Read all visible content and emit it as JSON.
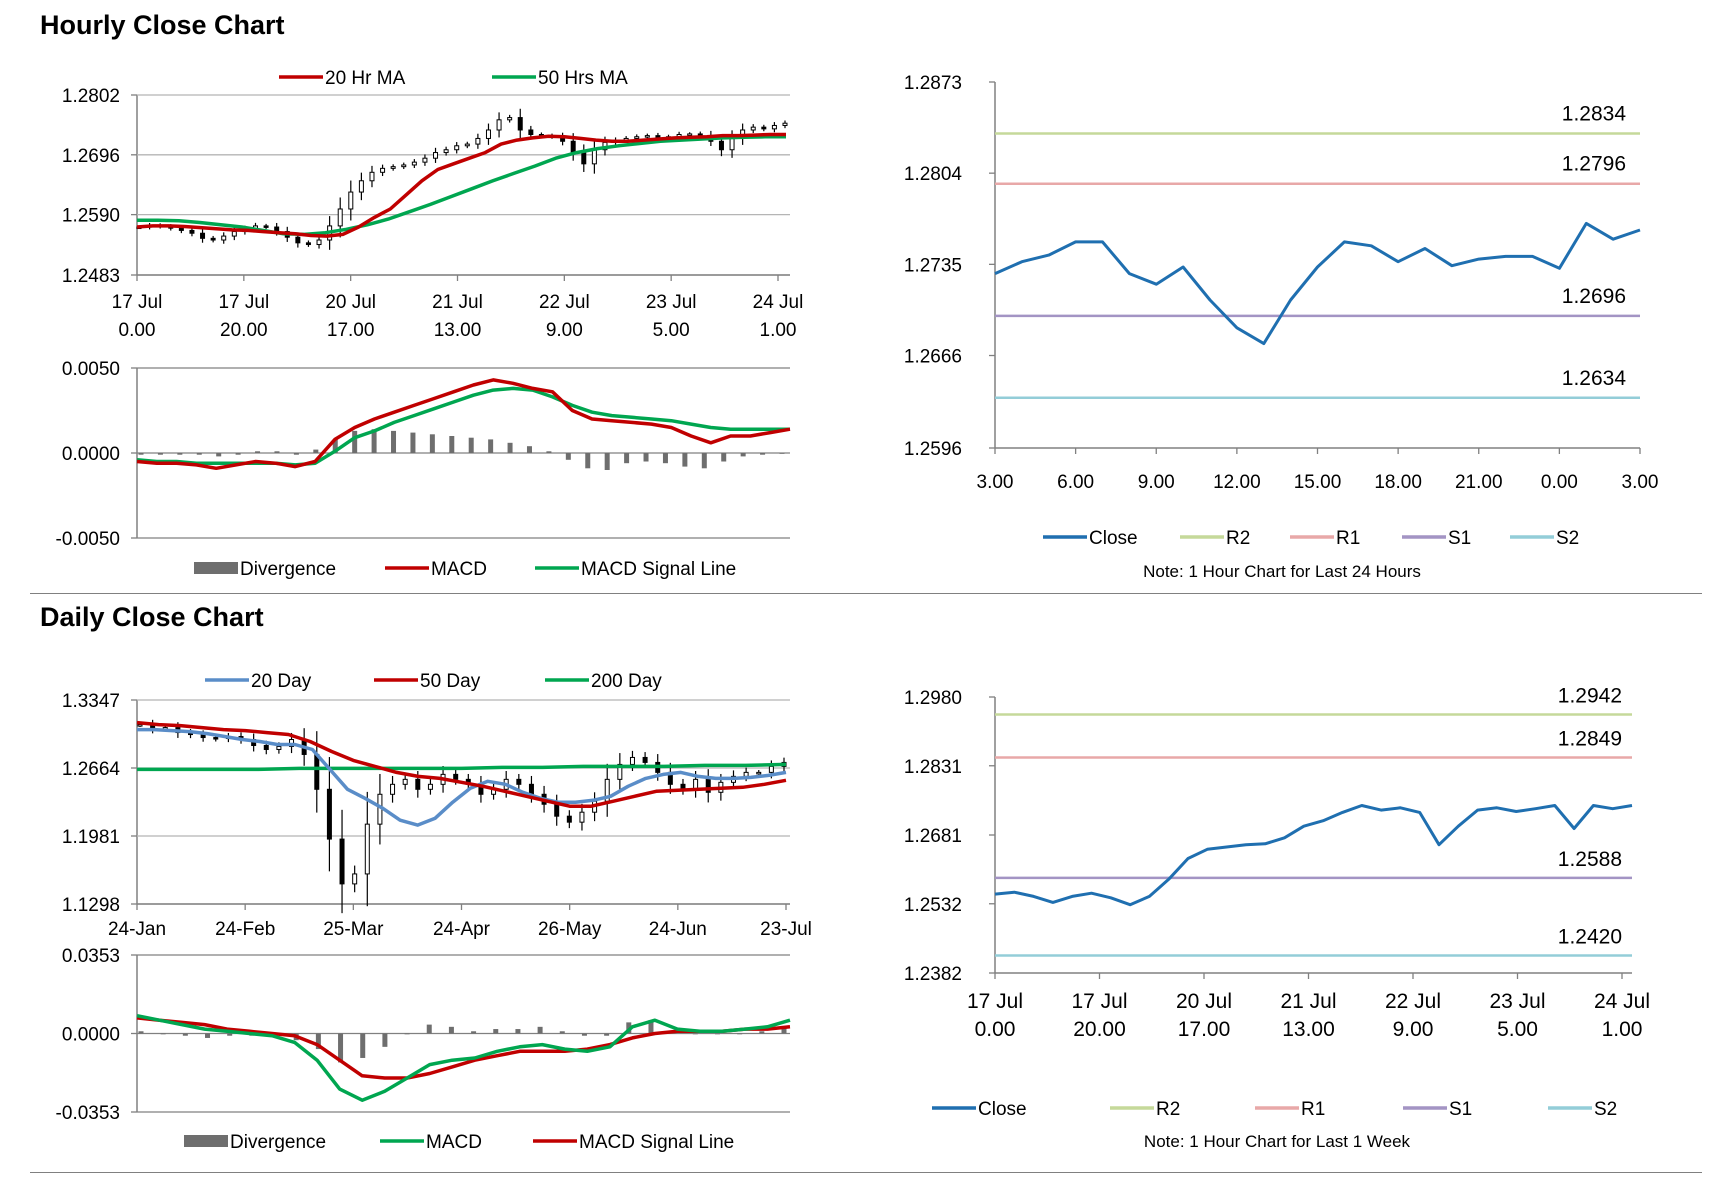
{
  "sections": [
    {
      "title": "Hourly Close Chart"
    },
    {
      "title": "Daily Close Chart"
    }
  ],
  "colors": {
    "ma20": "#c00000",
    "ma50": "#00a650",
    "close": "#1f6fb0",
    "r2": "#c5d99a",
    "r1": "#e8a8a8",
    "s1": "#a394c4",
    "s2": "#93cdd8",
    "divergence": "#6e6e6e",
    "ma20_day": "#5a8dc8",
    "grid": "#b5b5b5"
  },
  "chart_data": [
    {
      "id": "hourly-price",
      "type": "candlestick",
      "legend": [
        "20 Hr MA",
        "50 Hrs MA"
      ],
      "ylim": [
        1.2483,
        1.2802
      ],
      "yticks": [
        "1.2802",
        "1.2696",
        "1.2590",
        "1.2483"
      ],
      "xticks": [
        [
          "17 Jul",
          "0.00"
        ],
        [
          "17 Jul",
          "20.00"
        ],
        [
          "20 Jul",
          "17.00"
        ],
        [
          "21 Jul",
          "13.00"
        ],
        [
          "22 Jul",
          "9.00"
        ],
        [
          "23 Jul",
          "5.00"
        ],
        [
          "24 Jul",
          "1.00"
        ]
      ],
      "close": [
        1.2568,
        1.2571,
        1.2569,
        1.2566,
        1.2562,
        1.2557,
        1.2548,
        1.2545,
        1.2552,
        1.256,
        1.2565,
        1.257,
        1.2568,
        1.256,
        1.255,
        1.254,
        1.2537,
        1.2545,
        1.257,
        1.26,
        1.263,
        1.265,
        1.2665,
        1.2672,
        1.2675,
        1.2678,
        1.2683,
        1.269,
        1.27,
        1.2705,
        1.2712,
        1.2715,
        1.2725,
        1.274,
        1.2758,
        1.2762,
        1.274,
        1.2732,
        1.273,
        1.2728,
        1.272,
        1.27,
        1.268,
        1.2705,
        1.2718,
        1.2722,
        1.2725,
        1.2728,
        1.273,
        1.2726,
        1.2728,
        1.2732,
        1.2733,
        1.273,
        1.272,
        1.2705,
        1.2725,
        1.274,
        1.2745,
        1.2742,
        1.2748,
        1.2752
      ],
      "ma20": [
        1.2568,
        1.257,
        1.257,
        1.2569,
        1.2567,
        1.2565,
        1.2563,
        1.2562,
        1.256,
        1.2558,
        1.2556,
        1.2553,
        1.2552,
        1.2555,
        1.2568,
        1.2585,
        1.26,
        1.2625,
        1.265,
        1.267,
        1.268,
        1.269,
        1.27,
        1.2715,
        1.2722,
        1.2726,
        1.2729,
        1.2728,
        1.2725,
        1.2722,
        1.272,
        1.272,
        1.2722,
        1.2724,
        1.2726,
        1.2727,
        1.2728,
        1.273,
        1.273,
        1.2731,
        1.2732,
        1.2732
      ],
      "ma50": [
        1.258,
        1.258,
        1.2579,
        1.2576,
        1.2572,
        1.2568,
        1.2562,
        1.2556,
        1.2555,
        1.2558,
        1.2564,
        1.2572,
        1.2582,
        1.2595,
        1.2608,
        1.2622,
        1.2636,
        1.265,
        1.2663,
        1.2676,
        1.269,
        1.27,
        1.2707,
        1.2712,
        1.2716,
        1.272,
        1.2722,
        1.2724,
        1.2726,
        1.2727,
        1.2728,
        1.2728
      ]
    },
    {
      "id": "hourly-macd",
      "type": "line+bar",
      "legend": [
        "Divergence",
        "MACD",
        "MACD Signal Line"
      ],
      "ylim": [
        -0.005,
        0.005
      ],
      "yticks": [
        "0.0050",
        "0.0000",
        "-0.0050"
      ],
      "macd": [
        -0.0005,
        -0.0006,
        -0.0006,
        -0.0007,
        -0.0009,
        -0.0007,
        -0.0005,
        -0.0006,
        -0.0008,
        -0.0005,
        0.0008,
        0.0015,
        0.002,
        0.0024,
        0.0028,
        0.0032,
        0.0036,
        0.004,
        0.0043,
        0.0041,
        0.0038,
        0.0036,
        0.0025,
        0.002,
        0.0019,
        0.0018,
        0.0017,
        0.0015,
        0.001,
        0.0006,
        0.001,
        0.001,
        0.0012,
        0.0014
      ],
      "signal": [
        -0.0004,
        -0.0005,
        -0.0005,
        -0.0006,
        -0.0006,
        -0.0006,
        -0.0006,
        -0.0006,
        -0.0007,
        -0.0006,
        0.0001,
        0.0009,
        0.0013,
        0.0018,
        0.0022,
        0.0026,
        0.003,
        0.0034,
        0.0037,
        0.0038,
        0.0037,
        0.0033,
        0.0028,
        0.0024,
        0.0022,
        0.0021,
        0.002,
        0.0019,
        0.0017,
        0.0015,
        0.0014,
        0.0014,
        0.0014,
        0.0014
      ],
      "divergence": [
        -0.0001,
        -0.0001,
        -0.0001,
        -0.0001,
        -0.0002,
        -0.0001,
        0.0001,
        0.0001,
        -0.0001,
        0.0002,
        0.0008,
        0.0013,
        0.0014,
        0.0013,
        0.0012,
        0.0011,
        0.001,
        0.0009,
        0.0008,
        0.0006,
        0.0004,
        0.0001,
        -0.0004,
        -0.0009,
        -0.001,
        -0.0006,
        -0.0005,
        -0.0006,
        -0.0008,
        -0.0009,
        -0.0005,
        -0.0002,
        -0.0001,
        0.0
      ]
    },
    {
      "id": "hourly-close-levels",
      "type": "line",
      "legend": [
        "Close",
        "R2",
        "R1",
        "S1",
        "S2"
      ],
      "note": "Note: 1 Hour Chart for Last 24 Hours",
      "ylim": [
        1.2596,
        1.2873
      ],
      "yticks": [
        "1.2873",
        "1.2804",
        "1.2735",
        "1.2666",
        "1.2596"
      ],
      "xticks": [
        "3.00",
        "6.00",
        "9.00",
        "12.00",
        "15.00",
        "18.00",
        "21.00",
        "0.00",
        "3.00"
      ],
      "close": [
        1.2728,
        1.2737,
        1.2742,
        1.2752,
        1.2752,
        1.2728,
        1.272,
        1.2733,
        1.2708,
        1.2687,
        1.2675,
        1.2708,
        1.2733,
        1.2752,
        1.2749,
        1.2737,
        1.2747,
        1.2734,
        1.2739,
        1.2741,
        1.2741,
        1.2732,
        1.2766,
        1.2754,
        1.2761
      ],
      "levels": {
        "R2": "1.2834",
        "R1": "1.2796",
        "S1": "1.2696",
        "S2": "1.2634"
      }
    },
    {
      "id": "daily-price",
      "type": "candlestick",
      "legend": [
        "20 Day",
        "50 Day",
        "200 Day"
      ],
      "ylim": [
        1.1298,
        1.3347
      ],
      "yticks": [
        "1.3347",
        "1.2664",
        "1.1981",
        "1.1298"
      ],
      "xticks": [
        "24-Jan",
        "24-Feb",
        "25-Mar",
        "24-Apr",
        "26-May",
        "24-Jun",
        "23-Jul"
      ],
      "close": [
        1.31,
        1.306,
        1.307,
        1.302,
        1.3,
        1.297,
        1.296,
        1.298,
        1.295,
        1.289,
        1.285,
        1.288,
        1.295,
        1.28,
        1.245,
        1.195,
        1.15,
        1.16,
        1.21,
        1.24,
        1.25,
        1.255,
        1.245,
        1.25,
        1.26,
        1.255,
        1.25,
        1.24,
        1.245,
        1.255,
        1.25,
        1.24,
        1.23,
        1.218,
        1.212,
        1.222,
        1.233,
        1.255,
        1.27,
        1.277,
        1.272,
        1.262,
        1.25,
        1.245,
        1.255,
        1.242,
        1.252,
        1.258,
        1.262,
        1.262,
        1.268,
        1.272
      ],
      "ma20": [
        1.305,
        1.305,
        1.304,
        1.303,
        1.301,
        1.298,
        1.295,
        1.293,
        1.29,
        1.29,
        1.285,
        1.265,
        1.245,
        1.236,
        1.226,
        1.214,
        1.209,
        1.216,
        1.232,
        1.246,
        1.253,
        1.25,
        1.242,
        1.236,
        1.232,
        1.232,
        1.234,
        1.238,
        1.248,
        1.256,
        1.26,
        1.262,
        1.258,
        1.256,
        1.256,
        1.257,
        1.259,
        1.262
      ],
      "ma50": [
        1.312,
        1.31,
        1.309,
        1.307,
        1.305,
        1.304,
        1.302,
        1.3,
        1.293,
        1.283,
        1.274,
        1.268,
        1.262,
        1.258,
        1.256,
        1.252,
        1.248,
        1.243,
        1.238,
        1.233,
        1.228,
        1.228,
        1.233,
        1.238,
        1.243,
        1.244,
        1.245,
        1.246,
        1.247,
        1.25,
        1.254
      ],
      "ma200": [
        1.265,
        1.265,
        1.265,
        1.265,
        1.266,
        1.266,
        1.266,
        1.266,
        1.266,
        1.267,
        1.267,
        1.268,
        1.268,
        1.268,
        1.269,
        1.269,
        1.27
      ]
    },
    {
      "id": "daily-macd",
      "type": "line+bar",
      "legend": [
        "Divergence",
        "MACD",
        "MACD Signal Line"
      ],
      "ylim": [
        -0.0353,
        0.0353
      ],
      "yticks": [
        "0.0353",
        "0.0000",
        "-0.0353"
      ],
      "macd": [
        0.008,
        0.006,
        0.004,
        0.002,
        0.001,
        0.0,
        -0.001,
        -0.004,
        -0.012,
        -0.025,
        -0.03,
        -0.026,
        -0.02,
        -0.014,
        -0.012,
        -0.011,
        -0.008,
        -0.006,
        -0.005,
        -0.007,
        -0.008,
        -0.006,
        0.003,
        0.006,
        0.002,
        0.001,
        0.001,
        0.002,
        0.003,
        0.006
      ],
      "signal": [
        0.007,
        0.006,
        0.005,
        0.004,
        0.002,
        0.001,
        0.0,
        -0.001,
        -0.005,
        -0.012,
        -0.019,
        -0.02,
        -0.02,
        -0.018,
        -0.015,
        -0.012,
        -0.01,
        -0.008,
        -0.008,
        -0.008,
        -0.007,
        -0.005,
        -0.002,
        0.0,
        0.001,
        0.001,
        0.001,
        0.002,
        0.002,
        0.003
      ],
      "divergence": [
        0.001,
        0.0,
        -0.001,
        -0.002,
        -0.001,
        -0.001,
        -0.001,
        -0.003,
        -0.007,
        -0.013,
        -0.011,
        -0.006,
        0.0,
        0.004,
        0.003,
        0.001,
        0.002,
        0.002,
        0.003,
        0.001,
        -0.001,
        -0.001,
        0.005,
        0.006,
        0.001,
        0.0,
        0.0,
        0.0,
        0.001,
        0.003
      ]
    },
    {
      "id": "daily-close-levels",
      "type": "line",
      "legend": [
        "Close",
        "R2",
        "R1",
        "S1",
        "S2"
      ],
      "note": "Note: 1 Hour Chart for Last 1 Week",
      "ylim": [
        1.2382,
        1.298
      ],
      "yticks": [
        "1.2980",
        "1.2831",
        "1.2681",
        "1.2532",
        "1.2382"
      ],
      "xticks": [
        [
          "17 Jul",
          "0.00"
        ],
        [
          "17 Jul",
          "20.00"
        ],
        [
          "20 Jul",
          "17.00"
        ],
        [
          "21 Jul",
          "13.00"
        ],
        [
          "22 Jul",
          "9.00"
        ],
        [
          "23 Jul",
          "5.00"
        ],
        [
          "24 Jul",
          "1.00"
        ]
      ],
      "close": [
        1.2553,
        1.2557,
        1.2548,
        1.2535,
        1.2548,
        1.2555,
        1.2545,
        1.253,
        1.2548,
        1.2585,
        1.263,
        1.265,
        1.2655,
        1.266,
        1.2662,
        1.2675,
        1.27,
        1.2712,
        1.273,
        1.2745,
        1.2735,
        1.274,
        1.273,
        1.266,
        1.27,
        1.2735,
        1.274,
        1.2732,
        1.2738,
        1.2745,
        1.2695,
        1.2745,
        1.2738,
        1.2745
      ],
      "levels": {
        "R2": "1.2942",
        "R1": "1.2849",
        "S1": "1.2588",
        "S2": "1.2420"
      }
    }
  ]
}
